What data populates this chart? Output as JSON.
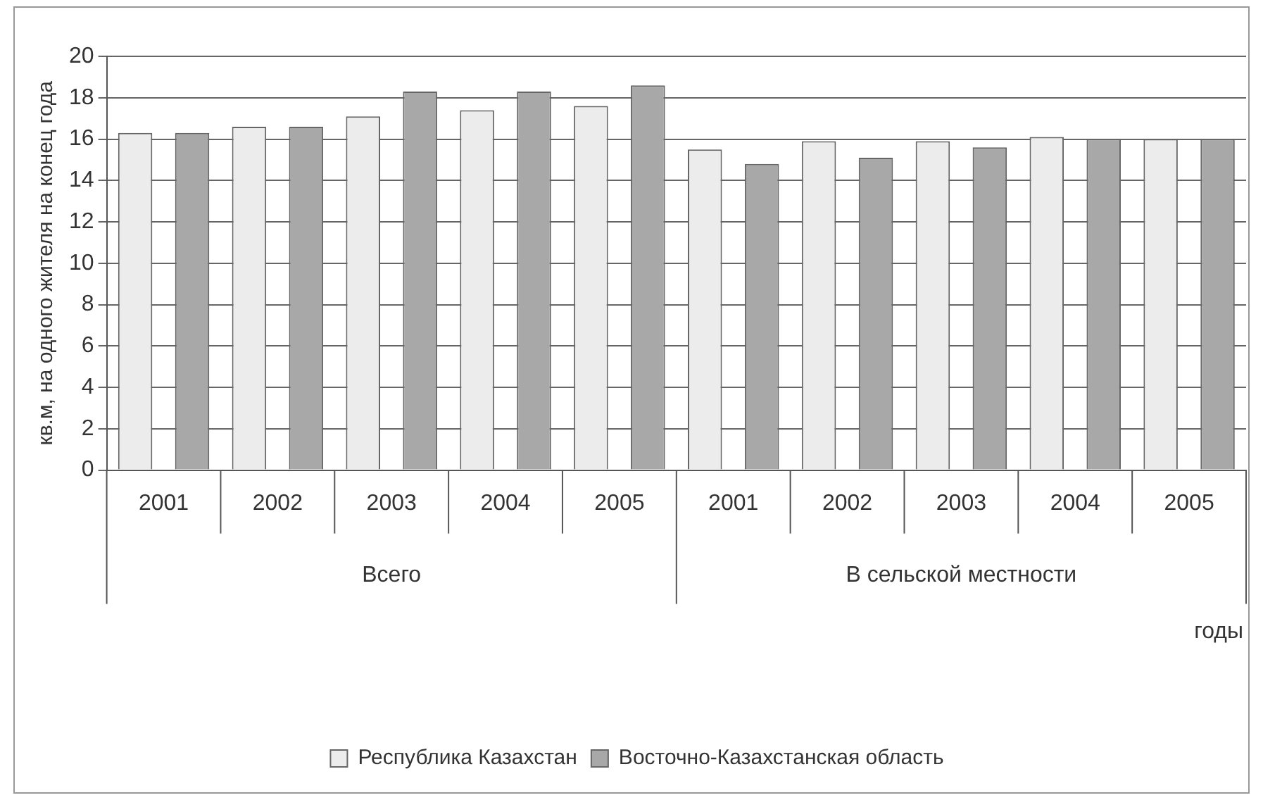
{
  "chart_data": {
    "type": "bar",
    "ylabel": "кв.м, на одного жителя на конец года",
    "xlabel": "годы",
    "categories": [
      "2001",
      "2002",
      "2003",
      "2004",
      "2005",
      "2001",
      "2002",
      "2003",
      "2004",
      "2005"
    ],
    "series": [
      {
        "name": "Республика Казахстан",
        "color": "#ececec",
        "values": [
          16.3,
          16.6,
          17.1,
          17.4,
          17.6,
          15.5,
          15.9,
          15.9,
          16.1,
          16.0
        ]
      },
      {
        "name": "Восточно-Казахстанская область",
        "color": "#a8a8a8",
        "values": [
          16.3,
          16.6,
          18.3,
          18.3,
          18.6,
          14.8,
          15.1,
          15.6,
          16.0,
          16.0
        ]
      }
    ],
    "ylim": [
      0,
      20
    ],
    "yticks": [
      0,
      2,
      4,
      6,
      8,
      10,
      12,
      14,
      16,
      18,
      20
    ],
    "grid": "y",
    "legend": "bottom",
    "annotations": [
      "Всего",
      "В сельской местности"
    ]
  }
}
